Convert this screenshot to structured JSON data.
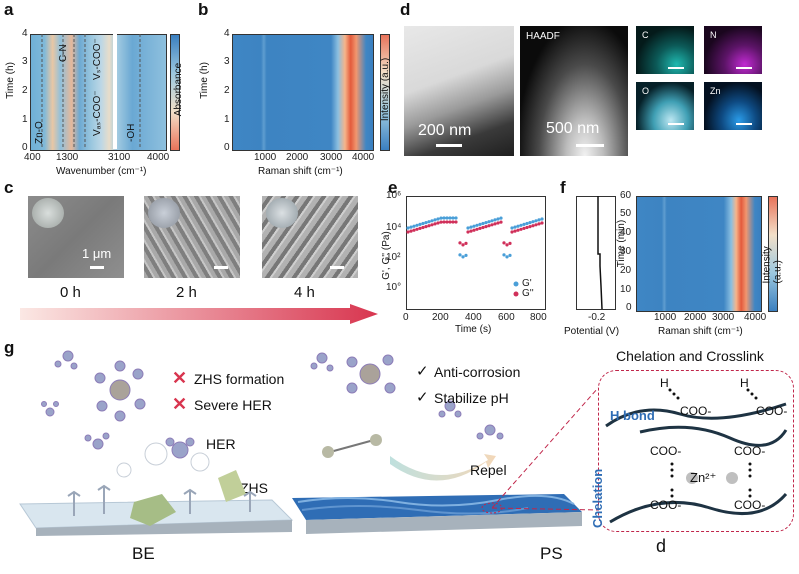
{
  "panels": {
    "a": {
      "label": "a",
      "ylabel": "Time (h)",
      "xlabel": "Wavenumber (cm⁻¹)",
      "colorbar_label": "Absorbance",
      "yticks": [
        "0",
        "1",
        "2",
        "3",
        "4"
      ],
      "xticks": [
        "400",
        "1300",
        "3100",
        "4000"
      ],
      "annotations": [
        "Zn-O",
        "C-N",
        "Vₛ-COO⁻",
        "Vₐₛ-COO⁻",
        "-OH"
      ]
    },
    "b": {
      "label": "b",
      "ylabel": "Time (h)",
      "xlabel": "Raman shift (cm⁻¹)",
      "colorbar_label": "Intensity (a.u.)",
      "yticks": [
        "0",
        "1",
        "2",
        "3",
        "4"
      ],
      "xticks": [
        "1000",
        "2000",
        "3000",
        "4000"
      ]
    },
    "c": {
      "label": "c",
      "scale": "1 μm",
      "timeline": [
        "0 h",
        "2 h",
        "4 h"
      ]
    },
    "d": {
      "label": "d",
      "scale_left": "200 nm",
      "haadf": "HAADF",
      "scale_right": "500 nm",
      "maps": [
        "C",
        "N",
        "O",
        "Zn"
      ]
    },
    "e": {
      "label": "e",
      "ylabel": "G', G'' (Pa)",
      "xlabel": "Time (s)",
      "yticks": [
        "10°",
        "10²",
        "10⁴",
        "10⁶"
      ],
      "xticks": [
        "0",
        "200",
        "400",
        "600",
        "800"
      ],
      "legend": [
        "G'",
        "G''"
      ]
    },
    "f": {
      "label": "f",
      "xlabel_left": "Potential (V)",
      "xtick_left": "-0.2",
      "ylabel": "Time (min)",
      "xlabel": "Raman shift (cm⁻¹)",
      "colorbar_label": "Intensity (a.u.)",
      "yticks": [
        "0",
        "10",
        "20",
        "30",
        "40",
        "50",
        "60"
      ],
      "xticks": [
        "1000",
        "2000",
        "3000",
        "4000"
      ]
    },
    "g": {
      "label": "g",
      "be_items": [
        "ZHS formation",
        "Severe HER"
      ],
      "her": "HER",
      "zhs": "ZHS",
      "be": "BE",
      "ps_items": [
        "Anti-corrosion",
        "Stabilize pH"
      ],
      "repel": "Repel",
      "ps": "PS",
      "title_right": "Chelation and Crosslink",
      "hbond": "H bond",
      "chelation": "Chelation",
      "zn": "Zn²⁺",
      "coo": "COO-",
      "h": "H",
      "d_mark": "d"
    }
  },
  "colors": {
    "heat_blue": "#3a7fc0",
    "heat_red": "#e8735a",
    "g_prime": "#4a9fd8",
    "g_double": "#d0305a",
    "arrow_red": "#d8354f",
    "accent_blue": "#2f6db5"
  }
}
